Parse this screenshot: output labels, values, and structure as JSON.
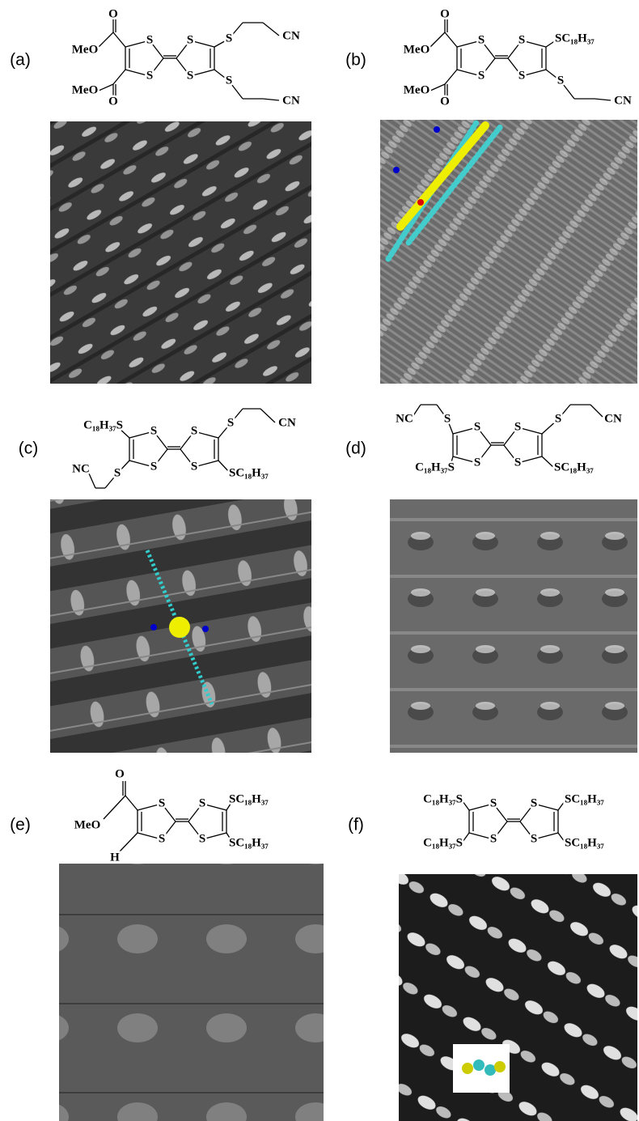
{
  "panels": [
    {
      "label": "(a)",
      "structure": [
        "S",
        "S",
        "S",
        "S",
        "O",
        "MeO",
        "MeO",
        "O",
        "S",
        "S",
        "CN",
        "CN"
      ]
    },
    {
      "label": "(b)",
      "structure": [
        "S",
        "S",
        "S",
        "S",
        "O",
        "MeO",
        "MeO",
        "O",
        "SC₁₈H₃₇",
        "S",
        "CN"
      ]
    },
    {
      "label": "(c)",
      "structure": [
        "S",
        "S",
        "S",
        "S",
        "C₁₈H₃₇S",
        "S",
        "NC",
        "S",
        "CN",
        "SC₁₈H₃₇"
      ]
    },
    {
      "label": "(d)",
      "structure": [
        "S",
        "S",
        "S",
        "S",
        "NC",
        "S",
        "C₁₈H₃₇S",
        "S",
        "CN",
        "SC₁₈H₃₇"
      ]
    },
    {
      "label": "(e)",
      "structure": [
        "S",
        "S",
        "S",
        "S",
        "O",
        "MeO",
        "H",
        "SC₁₈H₃₇",
        "SC₁₈H₃₇"
      ]
    },
    {
      "label": "(f)",
      "structure": [
        "S",
        "S",
        "S",
        "S",
        "C₁₈H₃₇S",
        "C₁₈H₃₇S",
        "SC₁₈H₃₇",
        "SC₁₈H₃₇"
      ]
    }
  ]
}
